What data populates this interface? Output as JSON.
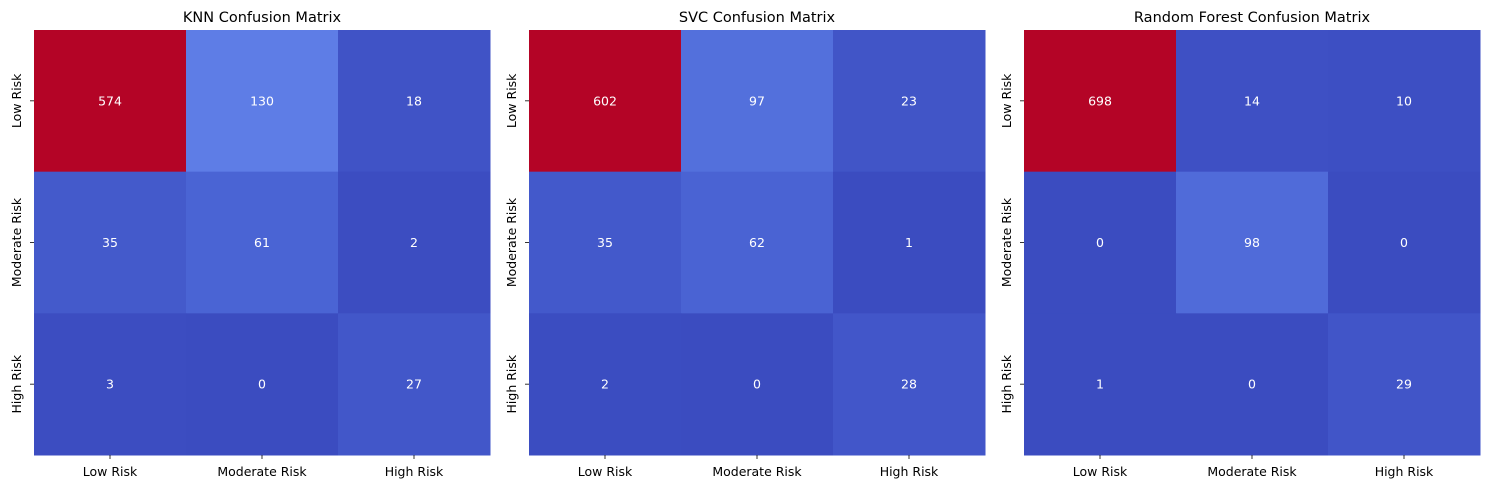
{
  "chart_data": [
    {
      "type": "heatmap",
      "title": "KNN Confusion Matrix",
      "x_categories": [
        "Low Risk",
        "Moderate Risk",
        "High Risk"
      ],
      "y_categories": [
        "Low Risk",
        "Moderate Risk",
        "High Risk"
      ],
      "values": [
        [
          574,
          130,
          18
        ],
        [
          35,
          61,
          2
        ],
        [
          3,
          0,
          27
        ]
      ],
      "colormap": "coolwarm",
      "colorbar": false,
      "grid": false
    },
    {
      "type": "heatmap",
      "title": "SVC Confusion Matrix",
      "x_categories": [
        "Low Risk",
        "Moderate Risk",
        "High Risk"
      ],
      "y_categories": [
        "Low Risk",
        "Moderate Risk",
        "High Risk"
      ],
      "values": [
        [
          602,
          97,
          23
        ],
        [
          35,
          62,
          1
        ],
        [
          2,
          0,
          28
        ]
      ],
      "colormap": "coolwarm",
      "colorbar": false,
      "grid": false
    },
    {
      "type": "heatmap",
      "title": "Random Forest Confusion Matrix",
      "x_categories": [
        "Low Risk",
        "Moderate Risk",
        "High Risk"
      ],
      "y_categories": [
        "Low Risk",
        "Moderate Risk",
        "High Risk"
      ],
      "values": [
        [
          698,
          14,
          10
        ],
        [
          0,
          98,
          0
        ],
        [
          1,
          0,
          29
        ]
      ],
      "colormap": "coolwarm",
      "colorbar": false,
      "grid": false
    }
  ]
}
